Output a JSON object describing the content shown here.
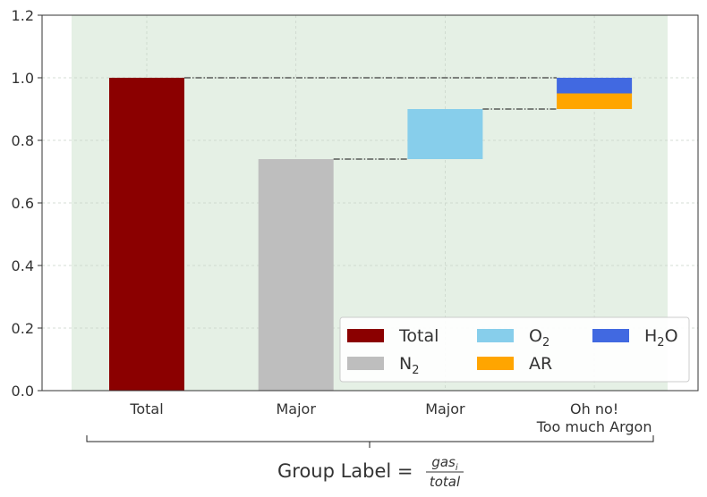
{
  "chart_data": {
    "type": "bar",
    "subtype": "stacked-waterfall",
    "categories": [
      "Total",
      "Major",
      "Major",
      "Oh no!\nToo much Argon"
    ],
    "series": [
      {
        "name": "Total",
        "color": "#8b0000",
        "segments": [
          {
            "category": 0,
            "bottom": 0.0,
            "top": 1.0
          }
        ]
      },
      {
        "name": "N2",
        "label_base": "N",
        "label_sub": "2",
        "color": "#bebebe",
        "segments": [
          {
            "category": 1,
            "bottom": 0.0,
            "top": 0.74
          }
        ]
      },
      {
        "name": "O2",
        "label_base": "O",
        "label_sub": "2",
        "color": "#87ceeb",
        "segments": [
          {
            "category": 2,
            "bottom": 0.74,
            "top": 0.9
          }
        ]
      },
      {
        "name": "AR",
        "label_base": "AR",
        "label_sub": "",
        "color": "#ffa500",
        "segments": [
          {
            "category": 3,
            "bottom": 0.9,
            "top": 0.95
          }
        ]
      },
      {
        "name": "H2O",
        "label_base": "H",
        "label_sub": "2",
        "label_tail": "O",
        "color": "#4169e1",
        "segments": [
          {
            "category": 3,
            "bottom": 0.95,
            "top": 1.0
          }
        ]
      }
    ],
    "connectors": [
      {
        "from": 0,
        "to": 3,
        "y": 1.0
      },
      {
        "from": 1,
        "to": 2,
        "y": 0.74
      },
      {
        "from": 2,
        "to": 3,
        "y": 0.9
      }
    ],
    "ylim": [
      0.0,
      1.2
    ],
    "yticks": [
      "0.0",
      "0.2",
      "0.4",
      "0.6",
      "0.8",
      "1.0",
      "1.2"
    ],
    "xlabel": {
      "prefix": "Group Label = ",
      "numerator": "gas",
      "numerator_sub": "i",
      "denominator": "total"
    },
    "grid": true,
    "legend": {
      "placement": "lower-right",
      "columns": 3
    },
    "background_band_color": "#e5f0e5"
  }
}
